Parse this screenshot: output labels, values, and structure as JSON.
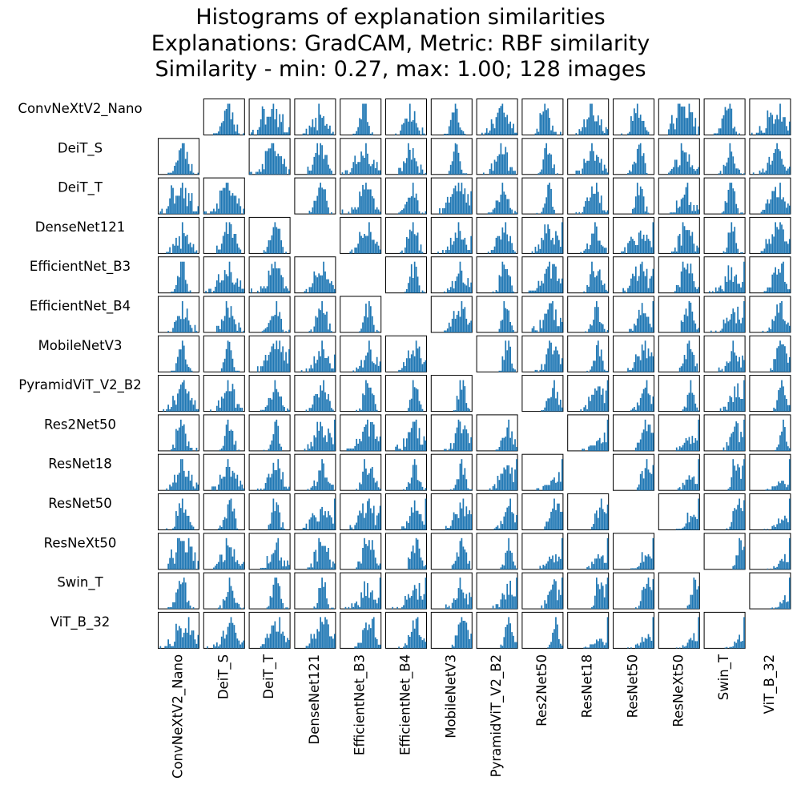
{
  "title": {
    "line1": "Histograms of explanation similarities",
    "line2": "Explanations: GradCAM, Metric: RBF similarity",
    "line3": "Similarity - min: 0.27, max: 1.00; 128 images"
  },
  "chart_data": {
    "type": "histogram-matrix",
    "bar_color": "#1f77b4",
    "models": [
      "ConvNeXtV2_Nano",
      "DeiT_S",
      "DeiT_T",
      "DenseNet121",
      "EfficientNet_B3",
      "EfficientNet_B4",
      "MobileNetV3",
      "PyramidViT_V2_B2",
      "Res2Net50",
      "ResNet18",
      "ResNet50",
      "ResNeXt50",
      "Swin_T",
      "ViT_B_32"
    ],
    "row_labels": [
      "ConvNeXtV2_Nano",
      "DeiT_S",
      "DeiT_T",
      "DenseNet121",
      "EfficientNet_B3",
      "EfficientNet_B4",
      "MobileNetV3",
      "PyramidViT_V2_B2",
      "Res2Net50",
      "ResNet18",
      "ResNet50",
      "ResNeXt50",
      "Swin_T",
      "ViT_B_32"
    ],
    "col_labels": [
      "ConvNeXtV2_Nano",
      "DeiT_S",
      "DeiT_T",
      "DenseNet121",
      "EfficientNet_B3",
      "EfficientNet_B4",
      "MobileNetV3",
      "PyramidViT_V2_B2",
      "Res2Net50",
      "ResNet18",
      "ResNet50",
      "ResNeXt50",
      "Swin_T",
      "ViT_B_32"
    ],
    "similarity_min": 0.27,
    "similarity_max": 1.0,
    "n_images": 128,
    "diagonal": "empty",
    "axes_ticks": false
  }
}
